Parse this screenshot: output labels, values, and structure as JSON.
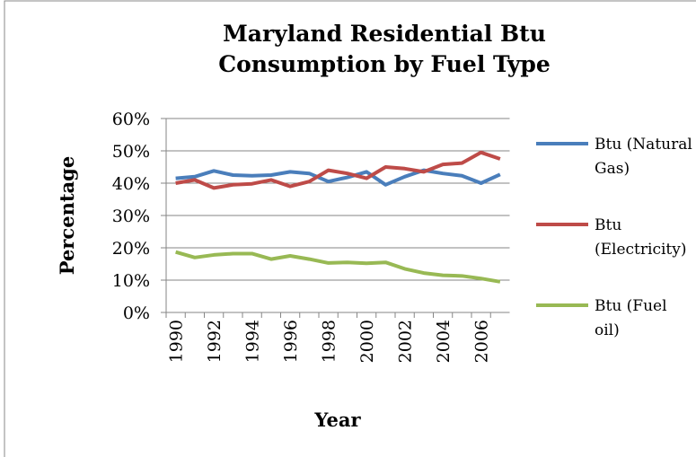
{
  "chart_data": {
    "type": "line",
    "title": "Maryland Residential Btu Consumption by Fuel Type",
    "x_label": "Year",
    "y_label": "Percentage",
    "categories": [
      "1990",
      null,
      "1992",
      null,
      "1994",
      null,
      "1996",
      null,
      "1998",
      null,
      "2000",
      null,
      "2002",
      null,
      "2004",
      null,
      "2006",
      null
    ],
    "series": [
      {
        "name": "Btu (Natural Gas)",
        "color": "#4a7ebb",
        "values": [
          41.5,
          42,
          43.8,
          42.5,
          42.3,
          42.5,
          43.5,
          43,
          40.5,
          41.8,
          43.5,
          39.5,
          42,
          44,
          43,
          42.3,
          40,
          42.7
        ]
      },
      {
        "name": "Btu (Electricity)",
        "color": "#be4b48",
        "values": [
          40,
          41,
          38.5,
          39.5,
          39.8,
          41,
          39,
          40.5,
          44,
          43,
          41.5,
          45,
          44.5,
          43.5,
          45.8,
          46.2,
          49.5,
          47.5
        ]
      },
      {
        "name": "Btu (Fuel oil)",
        "color": "#98b954",
        "values": [
          18.7,
          17,
          17.8,
          18.2,
          18.2,
          16.5,
          17.5,
          16.5,
          15.3,
          15.5,
          15.2,
          15.5,
          13.5,
          12.2,
          11.5,
          11.3,
          10.5,
          9.5
        ]
      }
    ],
    "ylim": [
      0,
      60
    ],
    "yticks": [
      {
        "value": 0,
        "label": "0%"
      },
      {
        "value": 10,
        "label": "10%"
      },
      {
        "value": 20,
        "label": "20%"
      },
      {
        "value": 30,
        "label": "30%"
      },
      {
        "value": 40,
        "label": "40%"
      },
      {
        "value": 50,
        "label": "50%"
      },
      {
        "value": 60,
        "label": "60%"
      }
    ],
    "grid": true,
    "legend": "right"
  }
}
